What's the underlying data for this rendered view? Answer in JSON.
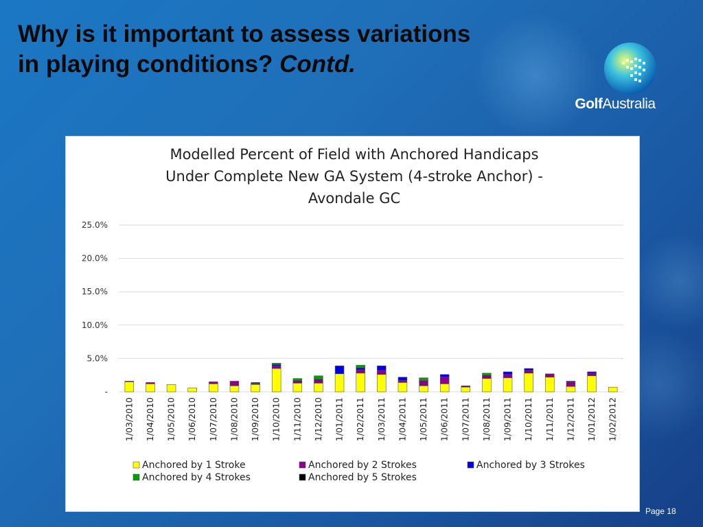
{
  "slide": {
    "title_line1": "Why is it important to assess variations",
    "title_line2": "in playing conditions?",
    "title_italic": "Contd.",
    "page_label": "Page 18"
  },
  "logo": {
    "text_bold": "Golf",
    "text_regular": "Australia"
  },
  "colors": {
    "background": "#1b6fb8",
    "stroke1": "#ffff00",
    "stroke2": "#8b008b",
    "stroke3": "#0000e0",
    "stroke4": "#00a000",
    "stroke5": "#000000"
  },
  "chart_data": {
    "type": "bar",
    "stacked": true,
    "title": "Modelled Percent of Field with Anchored Handicaps Under Complete New GA System (4-stroke Anchor) - Avondale GC",
    "title_lines": [
      "Modelled Percent of Field with Anchored Handicaps",
      "Under Complete New GA System (4-stroke Anchor) -",
      "Avondale GC"
    ],
    "ylim": [
      0,
      25
    ],
    "yticks": [
      0,
      5,
      10,
      15,
      20,
      25
    ],
    "ytick_labels": [
      "-",
      "5.0%",
      "10.0%",
      "15.0%",
      "20.0%",
      "25.0%"
    ],
    "grid": true,
    "legend_position": "bottom",
    "categories": [
      "1/03/2010",
      "1/04/2010",
      "1/05/2010",
      "1/06/2010",
      "1/07/2010",
      "1/08/2010",
      "1/09/2010",
      "1/10/2010",
      "1/11/2010",
      "1/12/2010",
      "1/01/2011",
      "1/02/2011",
      "1/03/2011",
      "1/04/2011",
      "1/05/2011",
      "1/06/2011",
      "1/07/2011",
      "1/08/2011",
      "1/09/2011",
      "1/10/2011",
      "1/11/2011",
      "1/12/2011",
      "1/01/2012",
      "1/02/2012"
    ],
    "series": [
      {
        "name": "Anchored by 1 Stroke",
        "color": "#ffff00",
        "values": [
          1.5,
          1.2,
          1.1,
          0.6,
          1.2,
          0.9,
          1.1,
          3.5,
          1.3,
          1.3,
          2.7,
          2.8,
          2.6,
          1.4,
          0.9,
          1.2,
          0.7,
          2.0,
          2.1,
          2.8,
          2.2,
          0.8,
          2.4,
          0.7
        ]
      },
      {
        "name": "Anchored by 2 Strokes",
        "color": "#8b008b",
        "values": [
          0.1,
          0.2,
          0.0,
          0.0,
          0.3,
          0.7,
          0.2,
          0.4,
          0.4,
          0.6,
          0.0,
          0.5,
          0.6,
          0.3,
          0.8,
          1.0,
          0.2,
          0.5,
          0.5,
          0.4,
          0.5,
          0.7,
          0.4,
          0.0
        ]
      },
      {
        "name": "Anchored by 3 Strokes",
        "color": "#0000e0",
        "values": [
          0.0,
          0.0,
          0.0,
          0.0,
          0.0,
          0.0,
          0.1,
          0.2,
          0.0,
          0.0,
          1.2,
          0.3,
          0.7,
          0.5,
          0.0,
          0.4,
          0.0,
          0.0,
          0.4,
          0.3,
          0.0,
          0.1,
          0.2,
          0.0
        ]
      },
      {
        "name": "Anchored by 4 Strokes",
        "color": "#00a000",
        "values": [
          0.0,
          0.0,
          0.0,
          0.0,
          0.0,
          0.0,
          0.0,
          0.2,
          0.3,
          0.5,
          0.0,
          0.4,
          0.0,
          0.0,
          0.4,
          0.0,
          0.0,
          0.3,
          0.0,
          0.0,
          0.0,
          0.0,
          0.0,
          0.0
        ]
      },
      {
        "name": "Anchored by 5 Strokes",
        "color": "#000000",
        "values": [
          0.0,
          0.0,
          0.0,
          0.0,
          0.0,
          0.0,
          0.0,
          0.0,
          0.0,
          0.0,
          0.0,
          0.0,
          0.0,
          0.0,
          0.0,
          0.0,
          0.0,
          0.0,
          0.0,
          0.0,
          0.0,
          0.0,
          0.0,
          0.0
        ]
      }
    ]
  }
}
